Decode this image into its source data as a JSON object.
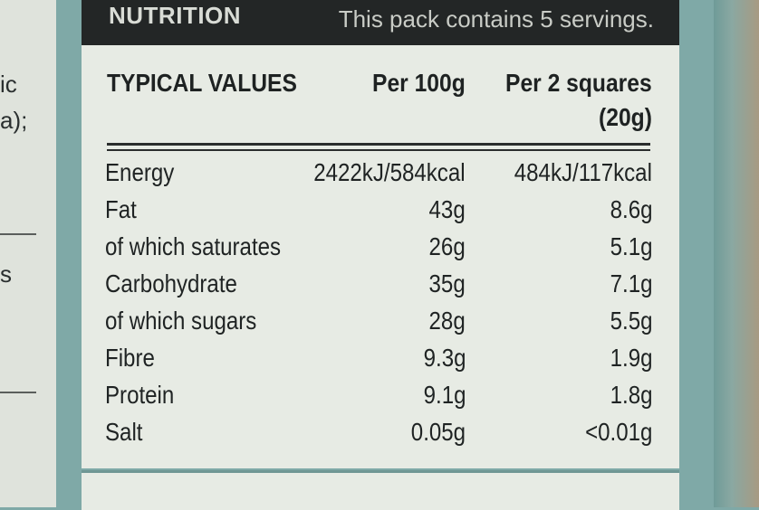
{
  "left_panel": {
    "fragments": [
      "ic",
      "a);",
      "s"
    ]
  },
  "label": {
    "title": "NUTRITION",
    "servings": "This pack contains 5 servings.",
    "header": {
      "col0": "TYPICAL VALUES",
      "col1": "Per 100g",
      "col2_line1": "Per 2 squares",
      "col2_line2": "(20g)"
    },
    "rows": [
      {
        "name": "Energy",
        "per100": "2422kJ/584kcal",
        "perServing": "484kJ/117kcal"
      },
      {
        "name": "Fat",
        "per100": "43g",
        "perServing": "8.6g"
      },
      {
        "name": "of which saturates",
        "per100": "26g",
        "perServing": "5.1g"
      },
      {
        "name": "Carbohydrate",
        "per100": "35g",
        "perServing": "7.1g"
      },
      {
        "name": "of which sugars",
        "per100": "28g",
        "perServing": "5.5g"
      },
      {
        "name": "Fibre",
        "per100": "9.3g",
        "perServing": "1.9g"
      },
      {
        "name": "Protein",
        "per100": "9.1g",
        "perServing": "1.8g"
      },
      {
        "name": "Salt",
        "per100": "0.05g",
        "perServing": "<0.01g"
      }
    ]
  },
  "colors": {
    "background_teal": "#7fa9a7",
    "label_paper": "#e7ebe4",
    "header_bar": "#232626",
    "text_dark": "#1f2323"
  }
}
